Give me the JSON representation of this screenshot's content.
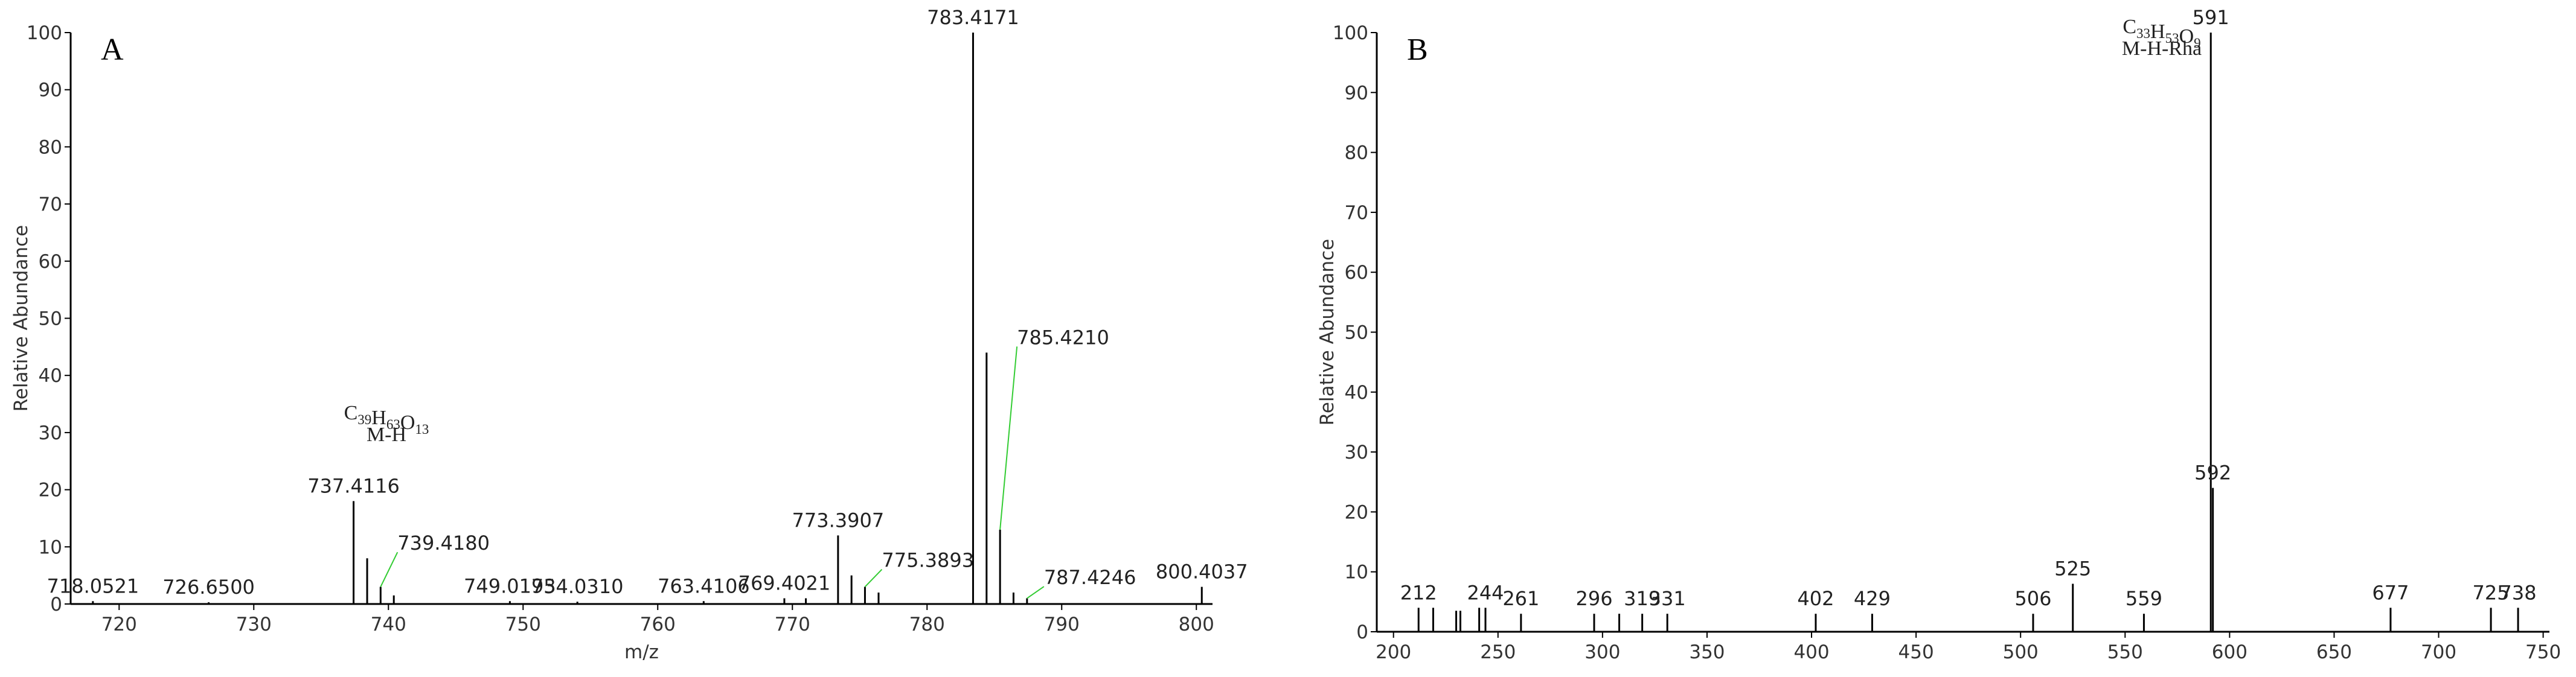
{
  "chart_data": [
    {
      "type": "stem",
      "title": "A",
      "ylabel": "Relative Abundance",
      "xlabel": "m/z",
      "annotation": {
        "formula": "C39H63O13",
        "text": "M-H"
      },
      "xlim": [
        716.4,
        801.2
      ],
      "xticks": [
        720,
        730,
        740,
        750,
        760,
        770,
        780,
        790,
        800
      ],
      "ylim": [
        0,
        100
      ],
      "yticks": [
        0,
        10,
        20,
        30,
        40,
        50,
        60,
        70,
        80,
        90,
        100
      ],
      "color": "#000000",
      "leader_color": "#33cc33",
      "peaks": {
        "x": [
          718.0521,
          726.65,
          737.4116,
          739.418,
          749.0193,
          754.031,
          763.4106,
          769.4021,
          773.3907,
          775.3893,
          783.4171,
          785.421,
          787.4246,
          800.4037
        ],
        "x_labels": [
          "718.0521",
          "726.6500",
          "737.4116",
          "739.4180",
          "749.0193",
          "754.0310",
          "763.4106",
          "769.4021",
          "773.3907",
          "775.3893",
          "783.4171",
          "785.4210",
          "787.4246",
          "800.4037"
        ],
        "values": [
          0.5,
          0.3,
          18,
          3,
          0.5,
          0.4,
          0.5,
          1,
          12,
          3,
          100,
          13,
          1,
          3
        ]
      },
      "minor_peaks": {
        "x": [
          738.42,
          740.4,
          771.0,
          774.39,
          776.4,
          784.42,
          786.42
        ],
        "values": [
          8,
          1.5,
          1,
          5,
          2,
          44,
          2
        ]
      }
    },
    {
      "type": "stem",
      "title": "B",
      "ylabel": "Relative Abundance",
      "annotation": {
        "formula": "C33H53O9",
        "text": "M-H-Rha"
      },
      "xlim": [
        192,
        753
      ],
      "xticks": [
        200,
        250,
        300,
        350,
        400,
        450,
        500,
        550,
        600,
        650,
        700,
        750
      ],
      "ylim": [
        0,
        100
      ],
      "yticks": [
        0,
        10,
        20,
        30,
        40,
        50,
        60,
        70,
        80,
        90,
        100
      ],
      "color": "#000000",
      "leader_color": "#33cc33",
      "peaks": {
        "x": [
          212,
          244,
          261,
          296,
          319,
          331,
          402,
          429,
          506,
          525,
          559,
          591,
          592,
          677,
          725,
          738
        ],
        "values": [
          4,
          4,
          3,
          3,
          3,
          3,
          3,
          3,
          3,
          8,
          3,
          100,
          24,
          4,
          4,
          4
        ]
      },
      "minor_peaks": {
        "x": [
          219,
          230,
          232,
          241,
          308
        ],
        "values": [
          4,
          3.5,
          3.5,
          4,
          3
        ]
      }
    }
  ]
}
